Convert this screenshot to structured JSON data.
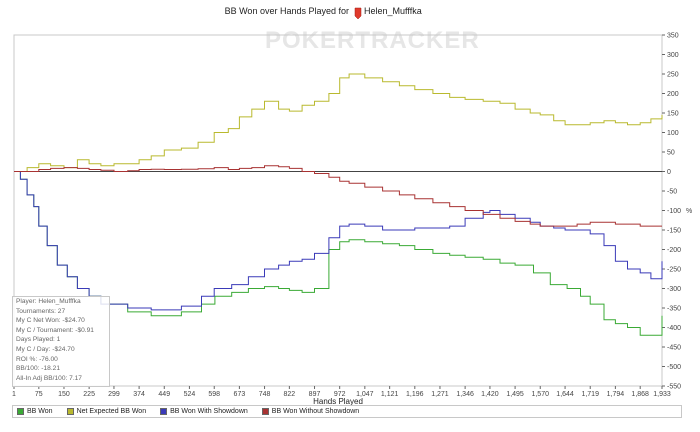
{
  "header": {
    "title_prefix": "BB Won over Hands Played for",
    "player": "Helen_Mufffka"
  },
  "watermark": "POKERTRACKER",
  "info_box": {
    "lines": [
      "Player: Helen_Mufffka",
      "Tournaments: 27",
      "My C Net Won: -$24.70",
      "My C / Tournament: -$0.91",
      "Days Played: 1",
      "My C / Day: -$24.70",
      "ROI %: -76.00",
      "BB/100: -18.21",
      "All-In Adj BB/100: 7.17"
    ]
  },
  "legend": [
    {
      "label": "BB Won",
      "color": "#3aaa35"
    },
    {
      "label": "Net Expected BB Won",
      "color": "#b9b92e"
    },
    {
      "label": "BB Won With Showdown",
      "color": "#3a3ab8"
    },
    {
      "label": "BB Won Without Showdown",
      "color": "#a83232"
    }
  ],
  "chart_data": {
    "type": "line",
    "title": "BB Won over Hands Played for Helen_Mufffka",
    "xlabel": "Hands Played",
    "ylabel": "",
    "xlim": [
      1,
      1933
    ],
    "ylim": [
      -550,
      350
    ],
    "x_ticks": [
      1,
      75,
      150,
      225,
      299,
      374,
      449,
      524,
      598,
      673,
      748,
      822,
      897,
      972,
      1047,
      1121,
      1196,
      1271,
      1346,
      1420,
      1495,
      1570,
      1644,
      1719,
      1794,
      1868,
      1933
    ],
    "y_ticks": [
      350,
      300,
      250,
      200,
      150,
      100,
      50,
      0,
      -50,
      -100,
      -150,
      -200,
      -250,
      -300,
      -350,
      -400,
      -450,
      -500,
      -550
    ],
    "y_axis_side": "right",
    "y_tick_suffix_at_neg100": "%",
    "grid": false,
    "legend_position": "bottom",
    "series": [
      {
        "name": "BB Won",
        "color": "#3aaa35",
        "x": [
          1,
          20,
          40,
          60,
          75,
          100,
          130,
          160,
          190,
          225,
          260,
          299,
          340,
          374,
          410,
          449,
          500,
          560,
          600,
          650,
          700,
          748,
          790,
          822,
          860,
          897,
          940,
          972,
          1000,
          1047,
          1100,
          1150,
          1196,
          1250,
          1300,
          1346,
          1400,
          1450,
          1495,
          1550,
          1600,
          1650,
          1690,
          1719,
          1760,
          1794,
          1830,
          1868,
          1900,
          1933
        ],
        "y": [
          0,
          -20,
          -60,
          -90,
          -140,
          -190,
          -240,
          -270,
          -300,
          -320,
          -340,
          -340,
          -360,
          -360,
          -370,
          -370,
          -360,
          -340,
          -320,
          -310,
          -300,
          -295,
          -300,
          -305,
          -310,
          -300,
          -200,
          -180,
          -175,
          -180,
          -185,
          -190,
          -200,
          -210,
          -215,
          -220,
          -225,
          -235,
          -240,
          -260,
          -290,
          -300,
          -320,
          -340,
          -380,
          -390,
          -400,
          -420,
          -420,
          -370
        ]
      },
      {
        "name": "Net Expected BB Won",
        "color": "#b9b92e",
        "x": [
          1,
          40,
          75,
          110,
          150,
          190,
          225,
          260,
          299,
          340,
          374,
          410,
          449,
          500,
          550,
          598,
          640,
          673,
          710,
          748,
          790,
          822,
          860,
          897,
          940,
          972,
          1000,
          1047,
          1100,
          1150,
          1196,
          1250,
          1300,
          1346,
          1400,
          1450,
          1495,
          1540,
          1570,
          1610,
          1644,
          1680,
          1719,
          1760,
          1794,
          1830,
          1868,
          1900,
          1933
        ],
        "y": [
          0,
          10,
          20,
          15,
          10,
          30,
          20,
          15,
          20,
          20,
          30,
          40,
          55,
          60,
          75,
          100,
          110,
          140,
          160,
          180,
          160,
          155,
          170,
          180,
          200,
          240,
          250,
          240,
          230,
          220,
          210,
          200,
          190,
          185,
          180,
          175,
          160,
          150,
          145,
          130,
          120,
          120,
          125,
          130,
          125,
          120,
          125,
          135,
          145
        ]
      },
      {
        "name": "BB Won With Showdown",
        "color": "#3a3ab8",
        "x": [
          1,
          20,
          40,
          60,
          75,
          100,
          130,
          160,
          190,
          225,
          260,
          299,
          340,
          374,
          410,
          449,
          500,
          560,
          598,
          650,
          700,
          748,
          790,
          822,
          860,
          897,
          940,
          972,
          1000,
          1047,
          1100,
          1150,
          1196,
          1250,
          1300,
          1346,
          1400,
          1420,
          1450,
          1495,
          1540,
          1570,
          1610,
          1644,
          1680,
          1719,
          1760,
          1794,
          1830,
          1868,
          1900,
          1933
        ],
        "y": [
          0,
          -20,
          -60,
          -90,
          -140,
          -190,
          -240,
          -270,
          -300,
          -320,
          -340,
          -340,
          -350,
          -350,
          -355,
          -355,
          -345,
          -320,
          -300,
          -290,
          -270,
          -250,
          -240,
          -230,
          -225,
          -210,
          -170,
          -140,
          -135,
          -140,
          -150,
          -150,
          -145,
          -145,
          -140,
          -120,
          -105,
          -100,
          -110,
          -120,
          -130,
          -140,
          -145,
          -150,
          -150,
          -160,
          -190,
          -230,
          -250,
          -260,
          -275,
          -230
        ]
      },
      {
        "name": "BB Won Without Showdown",
        "color": "#a83232",
        "x": [
          1,
          40,
          75,
          110,
          150,
          190,
          225,
          260,
          299,
          340,
          374,
          410,
          449,
          500,
          550,
          598,
          640,
          673,
          710,
          748,
          790,
          822,
          860,
          897,
          940,
          972,
          1000,
          1047,
          1100,
          1150,
          1196,
          1250,
          1300,
          1346,
          1400,
          1450,
          1495,
          1540,
          1570,
          1610,
          1644,
          1680,
          1719,
          1760,
          1794,
          1830,
          1868,
          1900,
          1933
        ],
        "y": [
          0,
          0,
          5,
          8,
          10,
          8,
          5,
          3,
          0,
          2,
          5,
          6,
          5,
          6,
          7,
          10,
          5,
          8,
          10,
          15,
          12,
          8,
          0,
          -5,
          -15,
          -25,
          -30,
          -40,
          -50,
          -60,
          -70,
          -80,
          -90,
          -100,
          -110,
          -120,
          -128,
          -135,
          -140,
          -140,
          -140,
          -135,
          -130,
          -130,
          -135,
          -135,
          -140,
          -140,
          -140
        ]
      }
    ]
  }
}
